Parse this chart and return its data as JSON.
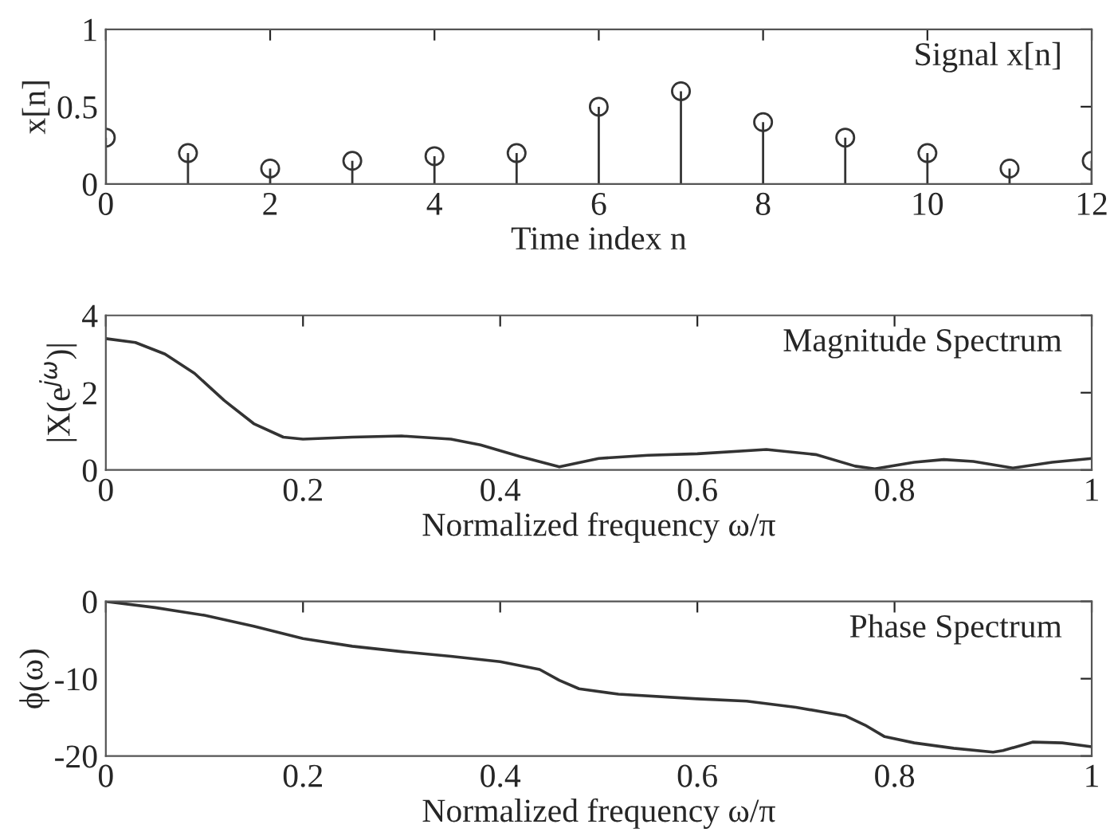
{
  "chart_data": [
    {
      "type": "lollipop",
      "xlabel": "Time index n",
      "ylabel": "x[n]",
      "annotations": [
        "Signal x[n]"
      ],
      "x": [
        0,
        1,
        2,
        3,
        4,
        5,
        6,
        7,
        8,
        9,
        10,
        11,
        12
      ],
      "series": [
        {
          "color": "#333333",
          "values": [
            0.3,
            0.2,
            0.1,
            0.15,
            0.18,
            0.2,
            0.5,
            0.6,
            0.4,
            0.3,
            0.2,
            0.1,
            0.15
          ]
        }
      ],
      "marker": "circle",
      "xlim": [
        0,
        12
      ],
      "xticks": [
        0,
        2,
        4,
        6,
        8,
        10,
        12
      ],
      "ylim": [
        0,
        1
      ],
      "yticks": [
        0,
        0.5,
        1
      ],
      "grid": false,
      "legend": false
    },
    {
      "type": "line",
      "xlabel": "Normalized frequency ω/π",
      "ylabel": "|X(e$^{jω}$)|",
      "annotations": [
        "Magnitude Spectrum"
      ],
      "x": [
        0,
        0.03,
        0.06,
        0.09,
        0.12,
        0.15,
        0.18,
        0.2,
        0.25,
        0.3,
        0.35,
        0.38,
        0.42,
        0.46,
        0.5,
        0.55,
        0.6,
        0.67,
        0.72,
        0.76,
        0.78,
        0.82,
        0.85,
        0.88,
        0.92,
        0.96,
        1
      ],
      "series": [
        {
          "color": "#333333",
          "values": [
            3.4,
            3.3,
            3.0,
            2.5,
            1.8,
            1.2,
            0.85,
            0.8,
            0.85,
            0.88,
            0.8,
            0.65,
            0.35,
            0.08,
            0.3,
            0.38,
            0.42,
            0.53,
            0.4,
            0.1,
            0.03,
            0.2,
            0.27,
            0.22,
            0.05,
            0.2,
            0.3
          ]
        }
      ],
      "xlim": [
        0,
        1
      ],
      "xticks": [
        0,
        0.2,
        0.4,
        0.6,
        0.8,
        1
      ],
      "ylim": [
        0,
        4
      ],
      "yticks": [
        0,
        2,
        4
      ],
      "grid": false,
      "legend": false
    },
    {
      "type": "line",
      "xlabel": "Normalized frequency ω/π",
      "ylabel": "ϕ(ω)",
      "annotations": [
        "Phase Spectrum"
      ],
      "x": [
        0,
        0.05,
        0.1,
        0.15,
        0.2,
        0.25,
        0.3,
        0.35,
        0.4,
        0.44,
        0.46,
        0.48,
        0.52,
        0.6,
        0.65,
        0.7,
        0.75,
        0.77,
        0.79,
        0.82,
        0.86,
        0.9,
        0.91,
        0.94,
        0.97,
        1
      ],
      "series": [
        {
          "color": "#333333",
          "values": [
            0,
            -0.8,
            -1.8,
            -3.2,
            -4.8,
            -5.8,
            -6.5,
            -7.1,
            -7.8,
            -8.8,
            -10.2,
            -11.3,
            -12,
            -12.6,
            -12.9,
            -13.7,
            -14.8,
            -16,
            -17.5,
            -18.3,
            -19,
            -19.5,
            -19.3,
            -18.2,
            -18.3,
            -18.8
          ]
        }
      ],
      "xlim": [
        0,
        1
      ],
      "xticks": [
        0,
        0.2,
        0.4,
        0.6,
        0.8,
        1
      ],
      "ylim": [
        -20,
        0
      ],
      "yticks": [
        -20,
        -10,
        0
      ],
      "grid": false,
      "legend": false
    }
  ]
}
